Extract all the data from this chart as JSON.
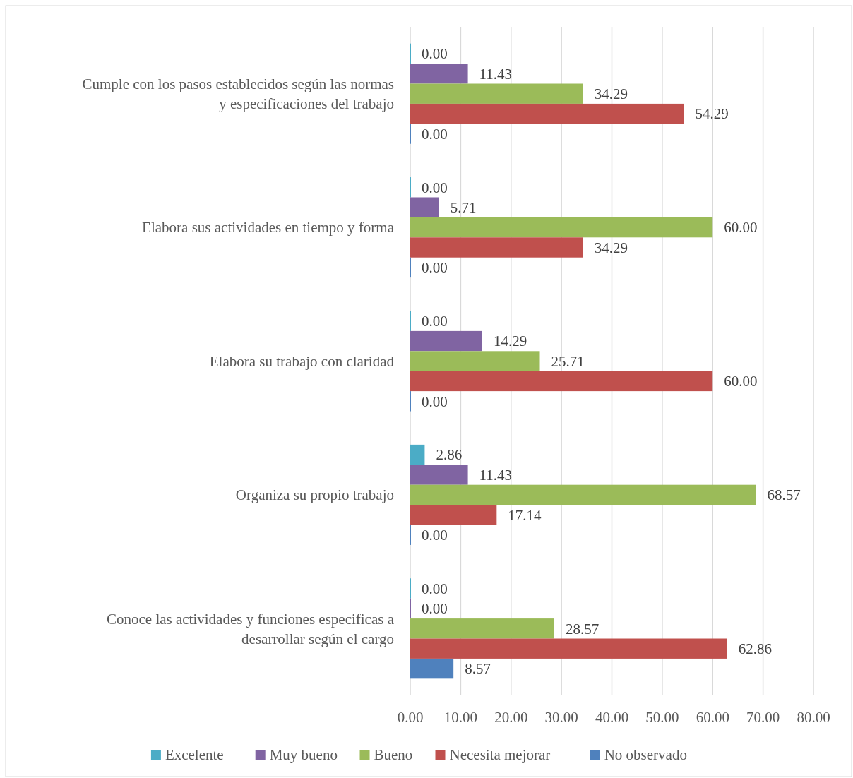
{
  "chart_data": {
    "type": "bar",
    "orientation": "horizontal",
    "categories": [
      "Cumple con los pasos establecidos según las normas y especificaciones del trabajo",
      "Elabora sus actividades en tiempo y forma",
      "Elabora su trabajo con claridad",
      "Organiza su propio trabajo",
      "Conoce las actividades y funciones especificas a desarrollar según el cargo"
    ],
    "series": [
      {
        "name": "Excelente",
        "color": "#4bacc6",
        "values": [
          0,
          0,
          0,
          2.86,
          0
        ],
        "value_labels": [
          "0.00",
          "0.00",
          "0.00",
          "2.86",
          "0.00"
        ]
      },
      {
        "name": "Muy bueno",
        "color": "#8064a2",
        "values": [
          11.43,
          5.71,
          14.29,
          11.43,
          0
        ],
        "value_labels": [
          "11.43",
          "5.71",
          "14.29",
          "11.43",
          "0.00"
        ]
      },
      {
        "name": "Bueno",
        "color": "#9bbb59",
        "values": [
          34.29,
          60,
          25.71,
          68.57,
          28.57
        ],
        "value_labels": [
          "34.29",
          "60.00",
          "25.71",
          "68.57",
          "28.57"
        ]
      },
      {
        "name": "Necesita mejorar",
        "color": "#c0504d",
        "values": [
          54.29,
          34.29,
          60,
          17.14,
          62.86
        ],
        "value_labels": [
          "54.29",
          "34.29",
          "60.00",
          "17.14",
          "62.86"
        ]
      },
      {
        "name": "No observado",
        "color": "#4f81bd",
        "values": [
          0,
          0,
          0,
          0,
          8.57
        ],
        "value_labels": [
          "0.00",
          "0.00",
          "0.00",
          "0.00",
          "8.57"
        ]
      }
    ],
    "xlim": [
      0,
      80
    ],
    "xticks": [
      {
        "value": 0,
        "label": "0.00"
      },
      {
        "value": 10,
        "label": "10.00"
      },
      {
        "value": 20,
        "label": "20.00"
      },
      {
        "value": 30,
        "label": "30.00"
      },
      {
        "value": 40,
        "label": "40.00"
      },
      {
        "value": 50,
        "label": "50.00"
      },
      {
        "value": 60,
        "label": "60.00"
      },
      {
        "value": 70,
        "label": "70.00"
      },
      {
        "value": 80,
        "label": "80.00"
      }
    ],
    "grid": "x",
    "legend": "bottom"
  }
}
